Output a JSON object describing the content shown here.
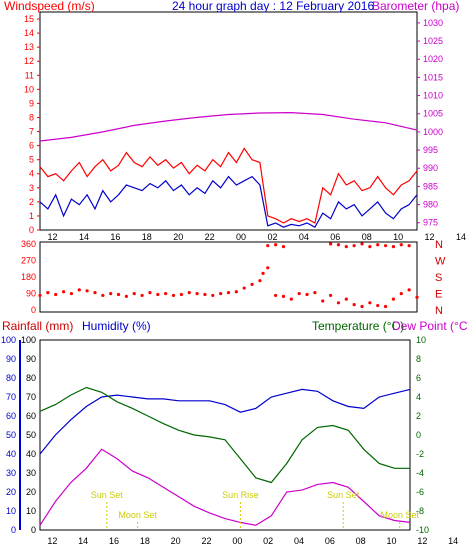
{
  "chart_data": [
    {
      "type": "line",
      "panel": "wind_barometer",
      "title": "24 hour graph day : 12 February 2016",
      "y_left_label": "Windspeed (m/s)",
      "y_right_label": "Barometer (hpa)",
      "y_left_ticks": [
        "0",
        "1",
        "2",
        "3",
        "4",
        "5",
        "6",
        "7",
        "8",
        "9",
        "10",
        "11",
        "12",
        "13",
        "14",
        "15"
      ],
      "y_left_range": [
        0,
        15.5
      ],
      "y_right_ticks": [
        "975",
        "980",
        "985",
        "990",
        "995",
        "1000",
        "1005",
        "1010",
        "1015",
        "1020",
        "1025",
        "1030"
      ],
      "y_right_range": [
        973,
        1033
      ],
      "x_ticks": [
        "12",
        "14",
        "16",
        "18",
        "20",
        "22",
        "00",
        "02",
        "04",
        "06",
        "08",
        "10",
        "12",
        "14",
        "16",
        "18",
        "20",
        "22",
        "00"
      ],
      "x_range": [
        11,
        35
      ],
      "series": [
        {
          "name": "Windspeed",
          "color": "#0000cc",
          "axis": "left",
          "x": [
            11,
            11.5,
            12,
            12.5,
            13,
            13.5,
            14,
            14.5,
            15,
            15.5,
            16,
            16.5,
            17,
            17.5,
            18,
            18.5,
            19,
            19.5,
            20,
            20.5,
            21,
            21.5,
            22,
            22.5,
            23,
            23.5,
            24,
            24.5,
            25,
            25.5,
            26,
            26.5,
            27,
            27.5,
            28,
            28.5,
            29,
            29.5,
            30,
            30.5,
            31,
            31.5,
            32,
            32.5,
            33,
            33.5,
            34,
            34.5,
            35
          ],
          "y": [
            2.0,
            1.5,
            2.5,
            1.0,
            2.2,
            1.8,
            2.5,
            1.5,
            2.8,
            2.0,
            2.5,
            3.2,
            3.0,
            2.8,
            3.3,
            3.0,
            3.5,
            2.8,
            3.2,
            2.5,
            3.0,
            2.6,
            3.5,
            3.0,
            3.8,
            3.2,
            3.5,
            3.8,
            3.2,
            0.3,
            0.5,
            0.2,
            0.4,
            0.3,
            0.5,
            0.2,
            1.2,
            0.8,
            2.0,
            1.5,
            1.8,
            1.0,
            1.5,
            2.0,
            1.2,
            0.8,
            1.5,
            1.8,
            2.5
          ]
        },
        {
          "name": "Wind gust",
          "color": "#ff0000",
          "axis": "left",
          "x": [
            11,
            11.5,
            12,
            12.5,
            13,
            13.5,
            14,
            14.5,
            15,
            15.5,
            16,
            16.5,
            17,
            17.5,
            18,
            18.5,
            19,
            19.5,
            20,
            20.5,
            21,
            21.5,
            22,
            22.5,
            23,
            23.5,
            24,
            24.5,
            25,
            25.5,
            26,
            26.5,
            27,
            27.5,
            28,
            28.5,
            29,
            29.5,
            30,
            30.5,
            31,
            31.5,
            32,
            32.5,
            33,
            33.5,
            34,
            34.5,
            35
          ],
          "y": [
            4.5,
            3.8,
            4.0,
            3.5,
            4.2,
            4.8,
            3.8,
            4.5,
            5.0,
            4.2,
            4.6,
            5.5,
            4.8,
            4.5,
            5.2,
            4.6,
            5.0,
            4.4,
            4.8,
            4.0,
            4.6,
            4.2,
            5.0,
            4.5,
            5.5,
            4.8,
            5.8,
            5.0,
            4.8,
            1.0,
            0.8,
            0.5,
            0.8,
            0.6,
            0.8,
            0.5,
            3.0,
            2.5,
            4.0,
            3.2,
            3.5,
            2.8,
            3.0,
            3.8,
            3.0,
            2.5,
            3.2,
            3.5,
            4.2
          ]
        },
        {
          "name": "Barometer",
          "color": "#cc00cc",
          "axis": "right",
          "x": [
            11,
            13,
            15,
            17,
            19,
            21,
            23,
            25,
            27,
            29,
            31,
            33,
            35
          ],
          "y": [
            997.5,
            998.5,
            1000.0,
            1001.8,
            1003.0,
            1004.0,
            1004.8,
            1005.2,
            1005.3,
            1004.8,
            1003.5,
            1002.5,
            1000.5
          ]
        }
      ]
    },
    {
      "type": "scatter",
      "panel": "wind_direction",
      "y_left_ticks": [
        "0",
        "90",
        "180",
        "270",
        "360"
      ],
      "y_right_ticks": [
        "N",
        "W",
        "S",
        "E",
        "N"
      ],
      "y_range": [
        -10,
        370
      ],
      "x_range": [
        11,
        35
      ],
      "series": [
        {
          "name": "Wind direction",
          "color": "#ff0000",
          "x": [
            11,
            11.5,
            12,
            12.5,
            13,
            13.5,
            14,
            14.5,
            15,
            15.5,
            16,
            16.5,
            17,
            17.5,
            18,
            18.5,
            19,
            19.5,
            20,
            20.5,
            21,
            21.5,
            22,
            22.5,
            23,
            23.5,
            24,
            24.5,
            25,
            25.2,
            25.5,
            26,
            26.5,
            27,
            27.5,
            28,
            28.5,
            29,
            29.5,
            30,
            30.5,
            31,
            31.5,
            32,
            32.5,
            33,
            33.5,
            34,
            34.5,
            35
          ],
          "y": [
            80,
            95,
            85,
            100,
            90,
            110,
            105,
            95,
            80,
            90,
            85,
            75,
            90,
            80,
            95,
            85,
            90,
            80,
            85,
            95,
            90,
            85,
            80,
            90,
            95,
            100,
            120,
            140,
            160,
            200,
            230,
            80,
            75,
            60,
            90,
            85,
            95,
            50,
            80,
            40,
            60,
            30,
            20,
            40,
            25,
            20,
            60,
            90,
            110,
            70
          ]
        },
        {
          "name": "Wind direction (north)",
          "color": "#ff0000",
          "x": [
            25.5,
            26,
            26.5,
            29.5,
            30,
            30.5,
            31,
            31.5,
            32,
            32.5,
            33,
            33.5,
            34,
            34.5
          ],
          "y": [
            350,
            355,
            345,
            360,
            355,
            345,
            350,
            360,
            345,
            355,
            350,
            345,
            355,
            350
          ]
        }
      ]
    },
    {
      "type": "line",
      "panel": "rain_humidity_temperature",
      "y_left_label_1": "Rainfall (mm)",
      "y_left_label_2": "Humidity (%)",
      "y_right_label_1": "Temperature (°C)",
      "y_right_label_2": "Dew Point (°C)",
      "y_rain_ticks": [
        "0",
        "10",
        "20",
        "30",
        "40",
        "50",
        "60",
        "70",
        "80",
        "90",
        "100"
      ],
      "y_humidity_ticks": [
        "0",
        "10",
        "20",
        "30",
        "40",
        "50",
        "60",
        "70",
        "80",
        "90",
        "100"
      ],
      "y_left_range": [
        0,
        100
      ],
      "y_right_ticks": [
        "-10",
        "-8",
        "-6",
        "-4",
        "-2",
        "0",
        "2",
        "4",
        "6",
        "8",
        "10"
      ],
      "y_right_range": [
        -10,
        10
      ],
      "x_ticks": [
        "12",
        "14",
        "16",
        "18",
        "20",
        "22",
        "00",
        "02",
        "04",
        "06",
        "08",
        "10",
        "12",
        "14",
        "16",
        "18",
        "20",
        "22",
        "00"
      ],
      "x_range": [
        11,
        35
      ],
      "series": [
        {
          "name": "Humidity",
          "color": "#0000cc",
          "axis": "left",
          "x": [
            11,
            12,
            13,
            14,
            15,
            16,
            17,
            18,
            19,
            20,
            21,
            22,
            23,
            24,
            25,
            26,
            27,
            28,
            29,
            30,
            31,
            32,
            33,
            34,
            35
          ],
          "y": [
            40,
            50,
            58,
            65,
            70,
            71,
            70,
            69,
            69,
            68,
            68,
            68,
            66,
            62,
            64,
            70,
            72,
            74,
            73,
            68,
            65,
            64,
            70,
            72,
            74
          ]
        },
        {
          "name": "Temperature",
          "color": "#006600",
          "axis": "right",
          "x": [
            11,
            12,
            13,
            14,
            15,
            16,
            17,
            18,
            19,
            20,
            21,
            22,
            23,
            24,
            25,
            26,
            27,
            28,
            29,
            30,
            31,
            32,
            33,
            34,
            35
          ],
          "y": [
            2.5,
            3.2,
            4.2,
            5.0,
            4.5,
            3.5,
            2.8,
            2.0,
            1.2,
            0.5,
            0.0,
            -0.2,
            -0.5,
            -2.5,
            -4.5,
            -5.0,
            -3.0,
            -0.5,
            0.8,
            1.0,
            0.5,
            -1.5,
            -3.0,
            -3.5,
            -3.5
          ]
        },
        {
          "name": "Dew Point",
          "color": "#cc00cc",
          "axis": "right",
          "x": [
            11,
            12,
            13,
            14,
            15,
            16,
            17,
            18,
            19,
            20,
            21,
            22,
            23,
            24,
            25,
            26,
            27,
            28,
            29,
            30,
            31,
            32,
            33,
            34,
            35
          ],
          "y": [
            -9.5,
            -7.0,
            -5.0,
            -3.5,
            -1.5,
            -2.5,
            -3.8,
            -4.5,
            -5.5,
            -6.5,
            -7.5,
            -8.2,
            -8.8,
            -9.2,
            -9.5,
            -8.5,
            -6.0,
            -5.8,
            -5.2,
            -5.0,
            -5.5,
            -7.0,
            -8.5,
            -9.0,
            -9.2
          ]
        }
      ],
      "annotations": [
        {
          "text": "Sun Set",
          "x": 17.5
        },
        {
          "text": "Moon Set",
          "x": 20.5
        },
        {
          "text": "Sun Rise",
          "x": 30.5
        },
        {
          "text": "Sun Set",
          "x": 40.5
        },
        {
          "text": "Moon Set",
          "x": 46.0
        }
      ]
    }
  ]
}
